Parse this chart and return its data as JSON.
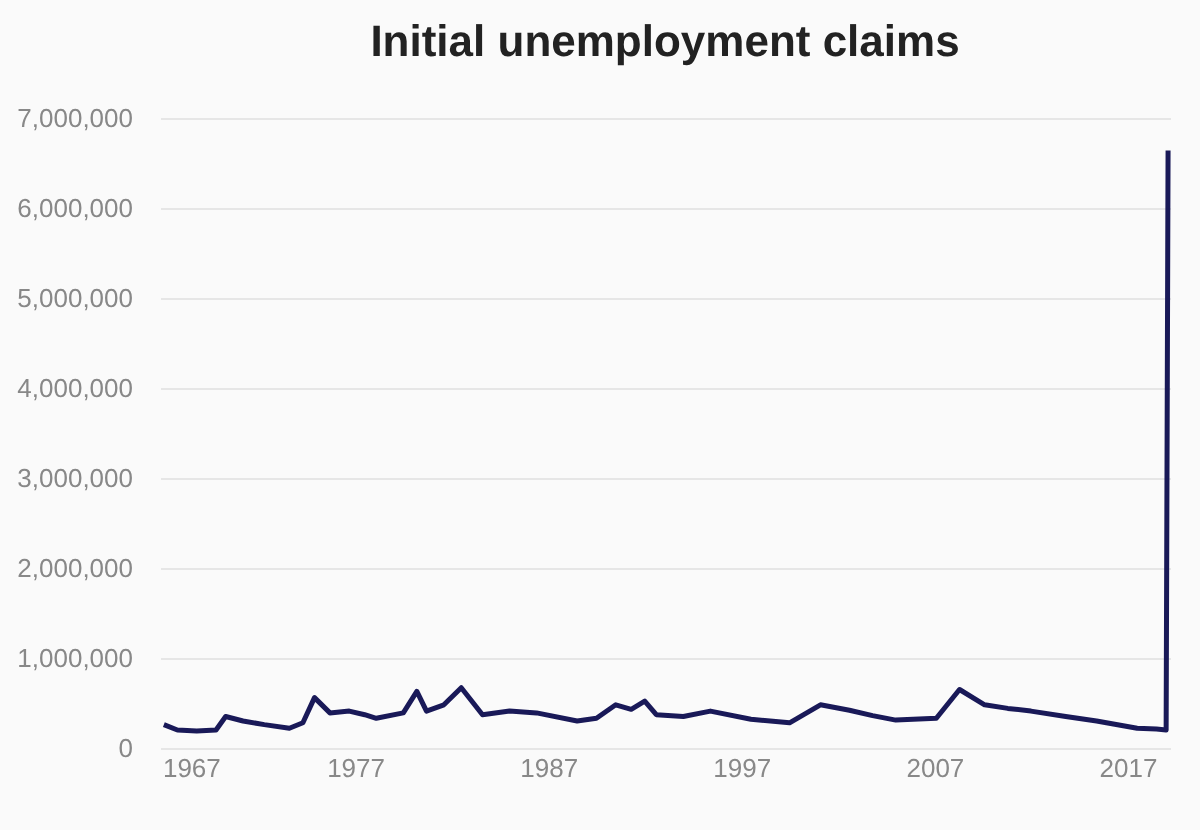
{
  "chart_data": {
    "type": "line",
    "title": "Initial unemployment claims",
    "x": [
      1967.1,
      1967.8,
      1968.8,
      1969.8,
      1970.3,
      1971.2,
      1972.3,
      1973.6,
      1974.3,
      1974.9,
      1975.7,
      1976.7,
      1977.5,
      1978.1,
      1979.5,
      1980.2,
      1980.7,
      1981.6,
      1982.5,
      1983.6,
      1985,
      1986.4,
      1988.5,
      1989.5,
      1990.5,
      1991.3,
      1992,
      1992.6,
      1994,
      1995.4,
      1997.5,
      1999.5,
      2001.1,
      2002.6,
      2003.8,
      2005,
      2007.1,
      2008.3,
      2009.6,
      2010.8,
      2012,
      2013.8,
      2015.4,
      2017.5,
      2018.5,
      2019,
      2019.1
    ],
    "series": [
      {
        "color": "#191958",
        "values": [
          260000,
          200000,
          190000,
          200000,
          350000,
          300000,
          260000,
          220000,
          280000,
          560000,
          390000,
          410000,
          370000,
          330000,
          390000,
          630000,
          410000,
          480000,
          670000,
          370000,
          410000,
          390000,
          300000,
          330000,
          480000,
          430000,
          520000,
          370000,
          350000,
          410000,
          320000,
          280000,
          480000,
          420000,
          360000,
          310000,
          330000,
          650000,
          480000,
          440000,
          410000,
          350000,
          300000,
          220000,
          210000,
          200000,
          6640000
        ]
      }
    ],
    "xlim": [
      1966.9,
      2019.2
    ],
    "xticks": [
      1967,
      1977,
      1987,
      1997,
      2007,
      2017
    ],
    "ylim": [
      0,
      7000000
    ],
    "yticks": [
      0,
      {
        "value": 1000000,
        "label": "1,000,000"
      },
      {
        "value": 2000000,
        "label": "2,000,000"
      },
      {
        "value": 3000000,
        "label": "3,000,000"
      },
      {
        "value": 4000000,
        "label": "4,000,000"
      },
      {
        "value": 5000000,
        "label": "5,000,000"
      },
      {
        "value": 6000000,
        "label": "6,000,000"
      },
      {
        "value": 7000000,
        "label": "7,000,000"
      }
    ],
    "grid": "y",
    "marker": "none",
    "line_style": "solid"
  }
}
